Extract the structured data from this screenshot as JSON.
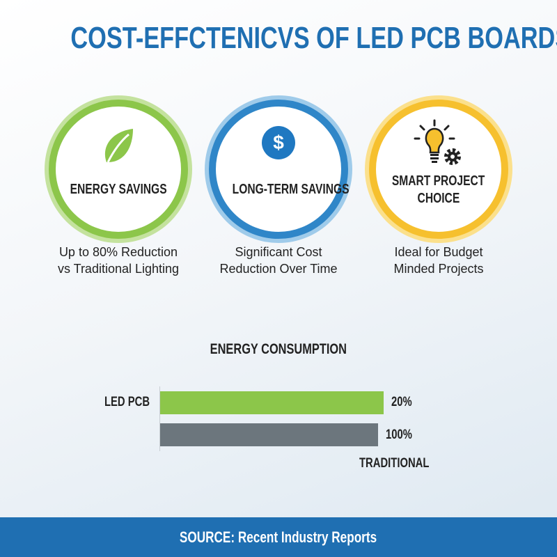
{
  "title": "COST-EFFCTENICVS OF LED PCB BOARDS",
  "cards": [
    {
      "label": "ENERGY SAVINGS",
      "icon": "leaf-icon",
      "color": "#8cc64a",
      "desc_line1": "Up to 80% Reduction",
      "desc_line2": "vs Traditional Lighting"
    },
    {
      "label": "LONG-TERM SAVINGS",
      "icon": "dollar-icon",
      "color": "#2f86c8",
      "desc_line1": "Significant Cost",
      "desc_line2": "Reduction Over Time"
    },
    {
      "label_line1": "SMART PROJECT",
      "label_line2": "CHOICE",
      "icon": "lightbulb-gear-icon",
      "color": "#f6c02e",
      "desc_line1": "Ideal for Budget",
      "desc_line2": "Minded Projects"
    }
  ],
  "chart_data": {
    "type": "bar",
    "orientation": "horizontal",
    "title": "ENERGY CONSUMPTION",
    "categories": [
      "LED PCB",
      "TRADITIONAL"
    ],
    "values": [
      20,
      100
    ],
    "value_labels": [
      "20%",
      "100%"
    ],
    "colors": [
      "#8cc64a",
      "#6c767d"
    ],
    "grid": false
  },
  "footer": "SOURCE: Recent Industry Reports"
}
